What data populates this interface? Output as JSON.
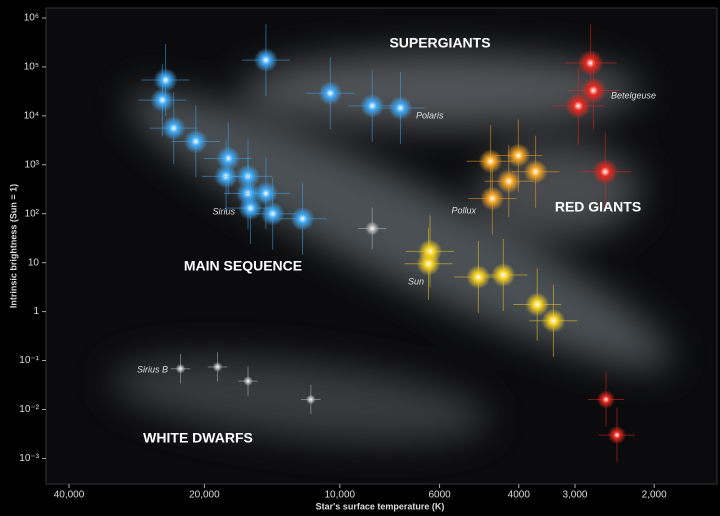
{
  "chart_data": {
    "type": "scatter",
    "xlabel": "Star's surface temperature (K)",
    "ylabel": "Intrinsic brightness (Sun = 1)",
    "log_x": true,
    "log_y": true,
    "xlim": [
      45000,
      1450
    ],
    "ylim": [
      0.0003,
      1600000
    ],
    "xticks": [
      {
        "value": 40000,
        "label": "40,000"
      },
      {
        "value": 20000,
        "label": "20,000"
      },
      {
        "value": 10000,
        "label": "10,000"
      },
      6000,
      4000,
      {
        "value": 3000,
        "label": "3,000"
      },
      {
        "value": 2000,
        "label": "2,000"
      }
    ],
    "yticks": [
      {
        "value": 1000000,
        "label": "10⁶"
      },
      {
        "value": 100000,
        "label": "10⁵"
      },
      {
        "value": 10000,
        "label": "10⁴"
      },
      {
        "value": 1000,
        "label": "10³"
      },
      {
        "value": 100,
        "label": "10²"
      },
      10,
      1,
      {
        "value": 0.1,
        "label": "10⁻¹"
      },
      {
        "value": 0.01,
        "label": "10⁻²"
      },
      {
        "value": 0.001,
        "label": "10⁻³"
      }
    ],
    "annotations": [
      "SUPERGIANTS",
      "RED GIANTS",
      "MAIN SEQUENCE",
      "WHITE DWARFS",
      "Polaris",
      "Betelgeuse",
      "Sirius",
      "Pollux",
      "Sun",
      "Sirius B"
    ],
    "series": [
      {
        "color": "#3fa9f5",
        "x": [
          24400,
          24800,
          23400,
          20900,
          17700,
          17900,
          16000,
          16000,
          14600,
          15800,
          14100,
          12100,
          14600,
          10500,
          8470,
          7330
        ],
        "values": [
          54000,
          21000,
          5600,
          3000,
          1350,
          580,
          580,
          260,
          260,
          130,
          100,
          79,
          138000,
          29000,
          16000,
          14500
        ]
      },
      {
        "color": "#bdbdbd",
        "x": [
          8470,
          22600,
          18700,
          16000,
          11600
        ],
        "values": [
          50,
          0.068,
          0.074,
          0.038,
          0.016
        ]
      },
      {
        "color": "#f5d020",
        "x": [
          6300,
          6350,
          4920,
          4330,
          3640,
          3350
        ],
        "values": [
          17,
          9.5,
          5.1,
          5.6,
          1.4,
          0.65
        ]
      },
      {
        "color": "#f5a623",
        "x": [
          4620,
          4010,
          3670,
          4210,
          4580
        ],
        "values": [
          1180,
          1550,
          720,
          460,
          205
        ]
      },
      {
        "color": "#e8281e",
        "x": [
          2770,
          2730,
          2950,
          2570,
          2560,
          2420
        ],
        "values": [
          120000,
          33000,
          16000,
          720,
          0.016,
          0.003
        ]
      }
    ]
  }
}
